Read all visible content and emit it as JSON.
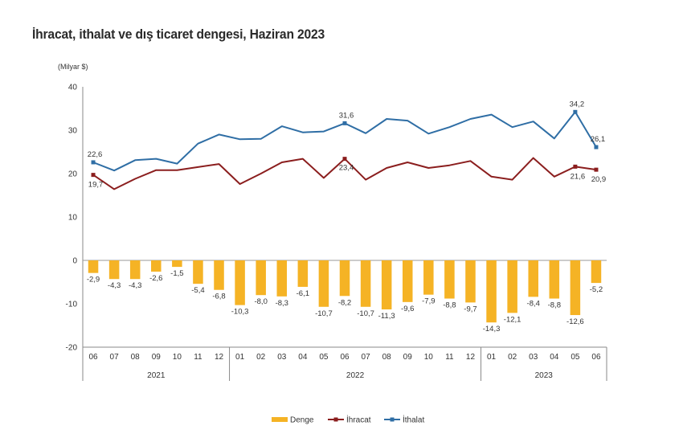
{
  "chart_data": {
    "type": "bar+line",
    "title": "İhracat, ithalat ve dış ticaret dengesi, Haziran 2023",
    "ylabel": "(Milyar $)",
    "ylim": [
      -20,
      40
    ],
    "yticks": [
      "40",
      "30",
      "20",
      "10",
      "0",
      "-10",
      "-20"
    ],
    "ytick_values": [
      40,
      30,
      20,
      10,
      0,
      -10,
      -20
    ],
    "categories": [
      "06",
      "07",
      "08",
      "09",
      "10",
      "11",
      "12",
      "01",
      "02",
      "03",
      "04",
      "05",
      "06",
      "07",
      "08",
      "09",
      "10",
      "11",
      "12",
      "01",
      "02",
      "03",
      "04",
      "05",
      "06"
    ],
    "years": [
      {
        "label": "2021",
        "start": 0,
        "end": 6
      },
      {
        "label": "2022",
        "start": 7,
        "end": 18
      },
      {
        "label": "2023",
        "start": 19,
        "end": 24
      }
    ],
    "series": [
      {
        "name": "Denge",
        "kind": "bar",
        "color": "#f5b325",
        "values": [
          -2.9,
          -4.3,
          -4.3,
          -2.6,
          -1.5,
          -5.4,
          -6.8,
          -10.3,
          -8.0,
          -8.3,
          -6.1,
          -10.7,
          -8.2,
          -10.7,
          -11.3,
          -9.6,
          -7.9,
          -8.8,
          -9.7,
          -14.3,
          -12.1,
          -8.4,
          -8.8,
          -12.6,
          -5.2
        ],
        "labels": [
          "-2,9",
          "-4,3",
          "-4,3",
          "-2,6",
          "-1,5",
          "-5,4",
          "-6,8",
          "-10,3",
          "-8,0",
          "-8,3",
          "-6,1",
          "-10,7",
          "-8,2",
          "-10,7",
          "-11,3",
          "-9,6",
          "-7,9",
          "-8,8",
          "-9,7",
          "-14,3",
          "-12,1",
          "-8,4",
          "-8,8",
          "-12,6",
          "-5,2"
        ]
      },
      {
        "name": "İhracat",
        "kind": "line",
        "color": "#8b1e1e",
        "values": [
          19.7,
          16.4,
          18.8,
          20.8,
          20.8,
          21.5,
          22.2,
          17.6,
          20.0,
          22.6,
          23.4,
          19.0,
          23.4,
          18.6,
          21.3,
          22.6,
          21.3,
          21.9,
          22.9,
          19.3,
          18.6,
          23.6,
          19.3,
          21.6,
          20.9
        ],
        "labeled": [
          {
            "index": 0,
            "text": "19,7"
          },
          {
            "index": 12,
            "text": "23,4"
          },
          {
            "index": 23,
            "text": "21,6"
          },
          {
            "index": 24,
            "text": "20,9"
          }
        ]
      },
      {
        "name": "İthalat",
        "kind": "line",
        "color": "#2f6ea5",
        "values": [
          22.6,
          20.7,
          23.1,
          23.4,
          22.3,
          26.9,
          29.0,
          27.9,
          28.0,
          30.9,
          29.5,
          29.7,
          31.6,
          29.3,
          32.6,
          32.2,
          29.2,
          30.7,
          32.6,
          33.6,
          30.7,
          32.0,
          28.1,
          34.2,
          26.1
        ],
        "labeled": [
          {
            "index": 0,
            "text": "22,6"
          },
          {
            "index": 12,
            "text": "31,6"
          },
          {
            "index": 23,
            "text": "34,2"
          },
          {
            "index": 24,
            "text": "26,1"
          }
        ]
      }
    ],
    "legend": [
      "Denge",
      "İhracat",
      "İthalat"
    ]
  }
}
